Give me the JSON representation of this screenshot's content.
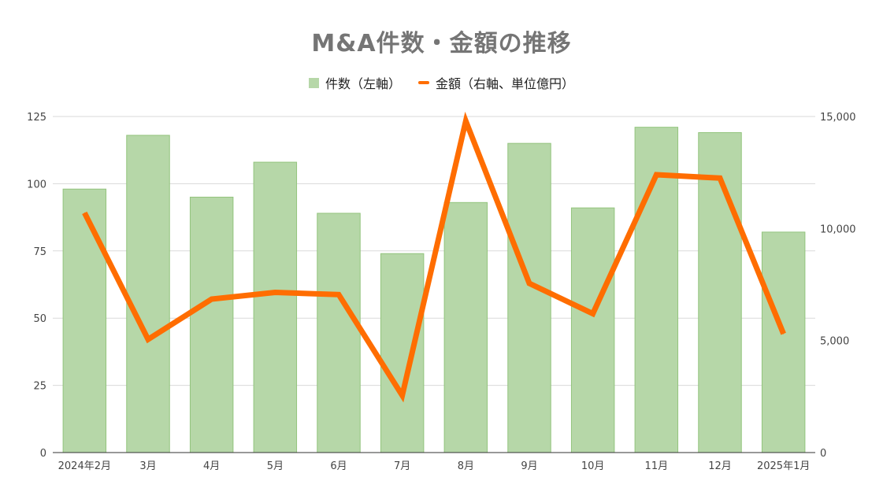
{
  "chart_data": {
    "type": "bar",
    "title": "M&A件数・金額の推移",
    "categories": [
      "2024年2月",
      "3月",
      "4月",
      "5月",
      "6月",
      "7月",
      "8月",
      "9月",
      "10月",
      "11月",
      "12月",
      "2025年1月"
    ],
    "series": [
      {
        "name": "件数（左軸）",
        "type": "bar",
        "axis": "left",
        "color": "#b6d7a8",
        "values": [
          98,
          118,
          95,
          108,
          89,
          74,
          93,
          115,
          91,
          121,
          119,
          82
        ]
      },
      {
        "name": "金額（右軸、単位億円）",
        "type": "line",
        "axis": "right",
        "color": "#ff6d01",
        "values": [
          10700,
          5050,
          6850,
          7150,
          7050,
          2550,
          14800,
          7550,
          6200,
          12400,
          12250,
          5300
        ]
      }
    ],
    "y_left": {
      "min": 0,
      "max": 125,
      "ticks": [
        "0",
        "25",
        "50",
        "75",
        "100",
        "125"
      ]
    },
    "y_right": {
      "min": 0,
      "max": 15000,
      "ticks": [
        "0",
        "5,000",
        "10,000",
        "15,000"
      ]
    },
    "legend_position": "top-center",
    "grid": true
  }
}
